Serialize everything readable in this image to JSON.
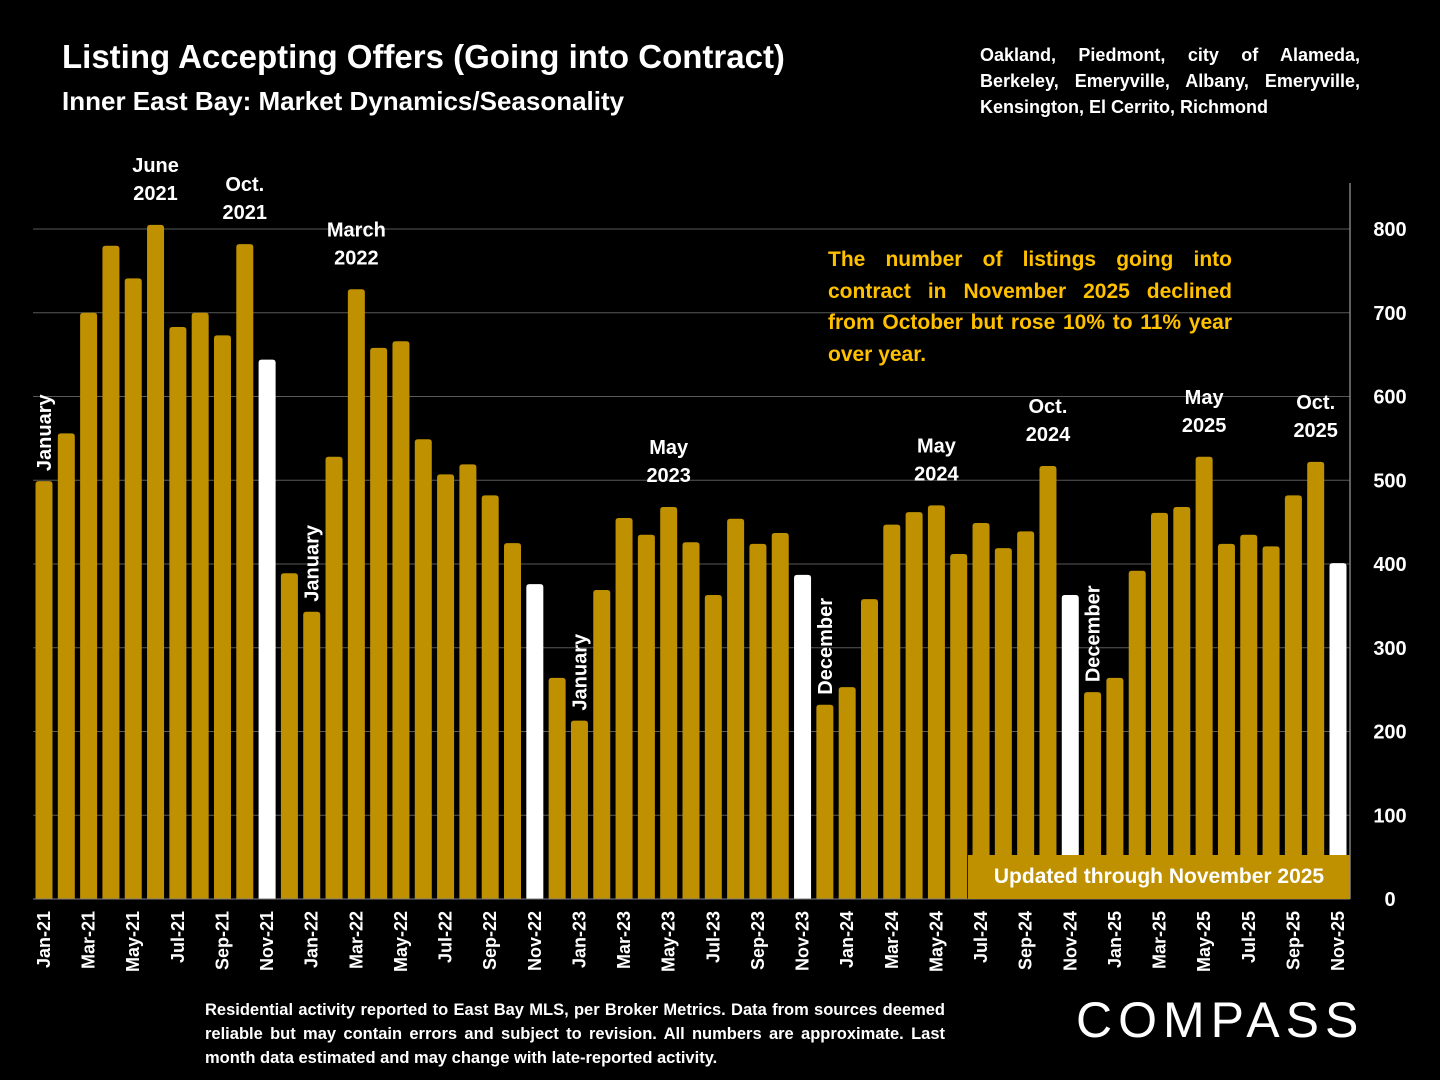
{
  "header": {
    "title": "Listing Accepting Offers (Going into Contract)",
    "subtitle": "Inner East Bay: Market Dynamics/Seasonality",
    "areas": "Oakland, Piedmont, city of Alameda, Berkeley, Emeryville, Albany, Emeryville, Kensington, El Cerrito, Richmond"
  },
  "note": "The number of listings going into contract in November 2025 declined from October but rose 10% to 11% year over year.",
  "updated_label": "Updated through November 2025",
  "footer": {
    "source": "Residential activity reported to East Bay MLS, per Broker Metrics. Data from sources deemed reliable but may contain errors and subject to revision. All numbers are approximate. Last month data estimated and may change with late-reported activity.",
    "logo": "COMPASS"
  },
  "colors": {
    "bar": "#BF9000",
    "highlight": "#FFFFFF",
    "note": "#FFC000",
    "grid": "#595959"
  },
  "chart_data": {
    "type": "bar",
    "ylim": [
      0,
      800
    ],
    "yticks": [
      0,
      100,
      200,
      300,
      400,
      500,
      600,
      700,
      800
    ],
    "y_axis_side": "right",
    "grid": true,
    "categories": [
      "Jan-21",
      "Feb-21",
      "Mar-21",
      "Apr-21",
      "May-21",
      "Jun-21",
      "Jul-21",
      "Aug-21",
      "Sep-21",
      "Oct-21",
      "Nov-21",
      "Dec-21",
      "Jan-22",
      "Feb-22",
      "Mar-22",
      "Apr-22",
      "May-22",
      "Jun-22",
      "Jul-22",
      "Aug-22",
      "Sep-22",
      "Oct-22",
      "Nov-22",
      "Dec-22",
      "Jan-23",
      "Feb-23",
      "Mar-23",
      "Apr-23",
      "May-23",
      "Jun-23",
      "Jul-23",
      "Aug-23",
      "Sep-23",
      "Oct-23",
      "Nov-23",
      "Dec-23",
      "Jan-24",
      "Feb-24",
      "Mar-24",
      "Apr-24",
      "May-24",
      "Jun-24",
      "Jul-24",
      "Aug-24",
      "Sep-24",
      "Oct-24",
      "Nov-24",
      "Dec-24",
      "Jan-25",
      "Feb-25",
      "Mar-25",
      "Apr-25",
      "May-25",
      "Jun-25",
      "Jul-25",
      "Aug-25",
      "Sep-25",
      "Oct-25",
      "Nov-25"
    ],
    "values": [
      499,
      556,
      700,
      780,
      741,
      805,
      683,
      700,
      673,
      782,
      644,
      389,
      343,
      528,
      728,
      658,
      666,
      549,
      507,
      519,
      482,
      425,
      376,
      264,
      213,
      369,
      455,
      435,
      468,
      426,
      363,
      454,
      424,
      437,
      387,
      232,
      253,
      358,
      447,
      462,
      470,
      412,
      449,
      419,
      439,
      517,
      363,
      247,
      264,
      392,
      461,
      468,
      528,
      424,
      435,
      421,
      482,
      522,
      401
    ],
    "highlighted": [
      "Nov-21",
      "Nov-22",
      "Nov-23",
      "Nov-24",
      "Nov-25"
    ],
    "annotations": [
      {
        "category": "Jan-21",
        "text": "January",
        "rotated": true
      },
      {
        "category": "Jun-21",
        "text": [
          "June",
          "2021"
        ]
      },
      {
        "category": "Oct-21",
        "text": [
          "Oct.",
          "2021"
        ]
      },
      {
        "category": "Jan-22",
        "text": "January",
        "rotated": true
      },
      {
        "category": "Mar-22",
        "text": [
          "March",
          "2022"
        ]
      },
      {
        "category": "Jan-23",
        "text": "January",
        "rotated": true
      },
      {
        "category": "May-23",
        "text": [
          "May",
          "2023"
        ]
      },
      {
        "category": "Dec-23",
        "text": "December",
        "rotated": true
      },
      {
        "category": "May-24",
        "text": [
          "May",
          "2024"
        ]
      },
      {
        "category": "Oct-24",
        "text": [
          "Oct.",
          "2024"
        ]
      },
      {
        "category": "Dec-24",
        "text": "December",
        "rotated": true
      },
      {
        "category": "May-25",
        "text": [
          "May",
          "2025"
        ]
      },
      {
        "category": "Oct-25",
        "text": [
          "Oct.",
          "2025"
        ]
      }
    ]
  }
}
